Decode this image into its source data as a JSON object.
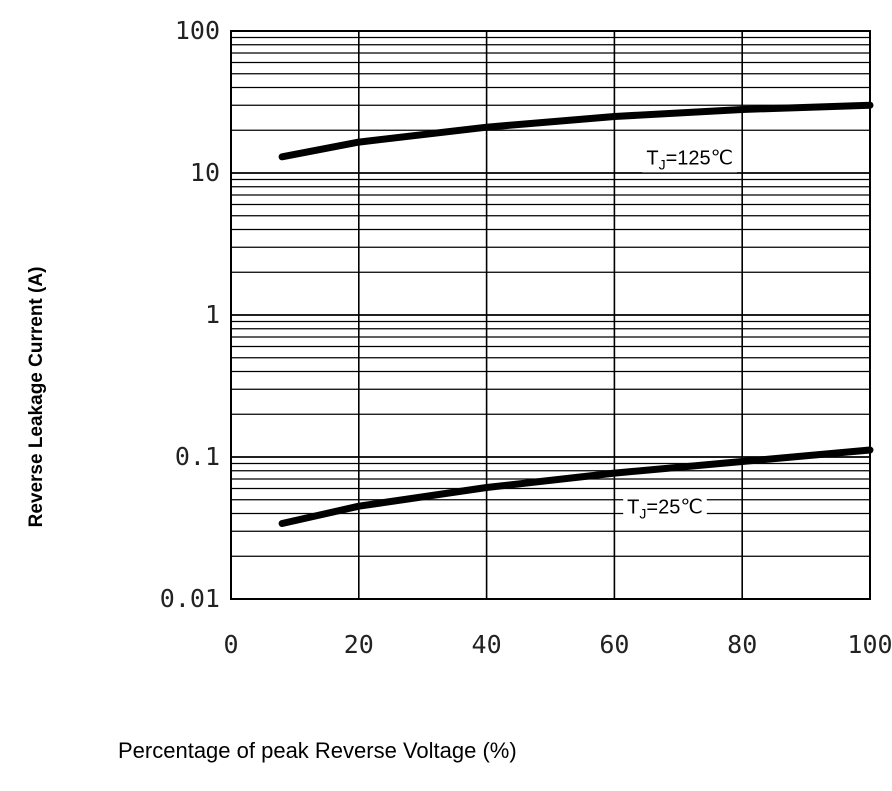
{
  "chart_data": {
    "type": "line",
    "xlabel": "Percentage of peak Reverse Voltage (%)",
    "ylabel": "Reverse Leakage Current (A)",
    "xlim": [
      0,
      100
    ],
    "ylim": [
      0.01,
      100
    ],
    "y_scale": "log",
    "grid": true,
    "x_ticks": [
      {
        "value": 0,
        "label": "0"
      },
      {
        "value": 20,
        "label": "20"
      },
      {
        "value": 40,
        "label": "40"
      },
      {
        "value": 60,
        "label": "60"
      },
      {
        "value": 80,
        "label": "80"
      },
      {
        "value": 100,
        "label": "100"
      }
    ],
    "y_ticks": [
      {
        "value": 100,
        "label": "100"
      },
      {
        "value": 10,
        "label": "10"
      },
      {
        "value": 1,
        "label": "1"
      },
      {
        "value": 0.1,
        "label": "0.1"
      },
      {
        "value": 0.01,
        "label": "0.01"
      }
    ],
    "line_color": "#000000",
    "series": [
      {
        "label": {
          "main": "T",
          "sub": "J",
          "rest": "=125℃"
        },
        "label_at": {
          "x": 65,
          "y": 11.5
        },
        "x": [
          8,
          20,
          40,
          60,
          80,
          100
        ],
        "y": [
          13,
          16.5,
          21,
          25,
          28,
          30
        ]
      },
      {
        "label": {
          "main": "T",
          "sub": "J",
          "rest": "=25℃"
        },
        "label_at": {
          "x": 62,
          "y": 0.04
        },
        "x": [
          8,
          20,
          40,
          60,
          80,
          100
        ],
        "y": [
          0.034,
          0.045,
          0.061,
          0.077,
          0.093,
          0.112
        ]
      }
    ]
  }
}
